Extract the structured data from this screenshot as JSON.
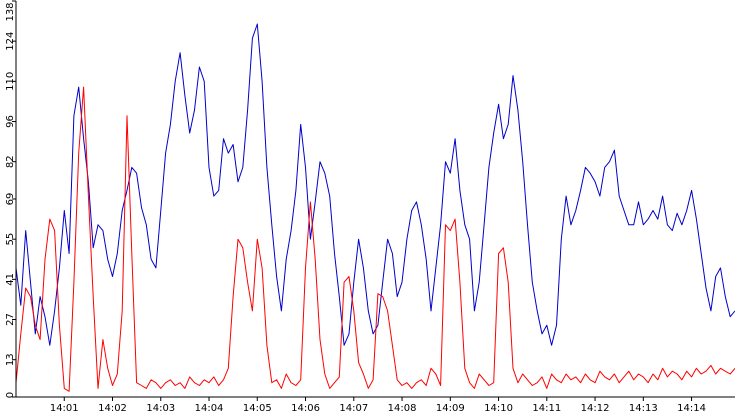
{
  "chart_data": {
    "type": "line",
    "title": "",
    "xlabel": "",
    "ylabel": "",
    "x_unit": "minutes",
    "xlim": [
      0,
      14.9
    ],
    "ylim": [
      0,
      138
    ],
    "grid": false,
    "legend": "none",
    "x_ticks": [
      {
        "value": 1,
        "label": "14:01"
      },
      {
        "value": 2,
        "label": "14:02"
      },
      {
        "value": 3,
        "label": "14:03"
      },
      {
        "value": 4,
        "label": "14:04"
      },
      {
        "value": 5,
        "label": "14:05"
      },
      {
        "value": 6,
        "label": "14:06"
      },
      {
        "value": 7,
        "label": "14:07"
      },
      {
        "value": 8,
        "label": "14:08"
      },
      {
        "value": 9,
        "label": "14:09"
      },
      {
        "value": 10,
        "label": "14:10"
      },
      {
        "value": 11,
        "label": "14:11"
      },
      {
        "value": 12,
        "label": "14:12"
      },
      {
        "value": 13,
        "label": "14:13"
      },
      {
        "value": 14,
        "label": "14:14"
      }
    ],
    "y_ticks": [
      {
        "value": 0,
        "label": "0"
      },
      {
        "value": 13,
        "label": "13"
      },
      {
        "value": 27,
        "label": "27"
      },
      {
        "value": 41,
        "label": "41"
      },
      {
        "value": 55,
        "label": "55"
      },
      {
        "value": 69,
        "label": "69"
      },
      {
        "value": 82,
        "label": "82"
      },
      {
        "value": 96,
        "label": "96"
      },
      {
        "value": 110,
        "label": "110"
      },
      {
        "value": 124,
        "label": "124"
      },
      {
        "value": 138,
        "label": "138"
      }
    ],
    "series": [
      {
        "color": "#0000cc",
        "x": [
          0.0,
          0.1,
          0.2,
          0.3,
          0.4,
          0.5,
          0.6,
          0.7,
          0.8,
          0.9,
          1.0,
          1.1,
          1.2,
          1.3,
          1.4,
          1.5,
          1.6,
          1.7,
          1.8,
          1.9,
          2.0,
          2.1,
          2.2,
          2.3,
          2.4,
          2.5,
          2.6,
          2.7,
          2.8,
          2.9,
          3.0,
          3.1,
          3.2,
          3.3,
          3.4,
          3.5,
          3.6,
          3.7,
          3.8,
          3.9,
          4.0,
          4.1,
          4.2,
          4.3,
          4.4,
          4.5,
          4.6,
          4.7,
          4.8,
          4.9,
          5.0,
          5.1,
          5.2,
          5.3,
          5.4,
          5.5,
          5.6,
          5.7,
          5.8,
          5.9,
          6.0,
          6.1,
          6.2,
          6.3,
          6.4,
          6.5,
          6.6,
          6.7,
          6.8,
          6.9,
          7.0,
          7.1,
          7.2,
          7.3,
          7.4,
          7.5,
          7.6,
          7.7,
          7.8,
          7.9,
          8.0,
          8.1,
          8.2,
          8.3,
          8.4,
          8.5,
          8.6,
          8.7,
          8.8,
          8.9,
          9.0,
          9.1,
          9.2,
          9.3,
          9.4,
          9.5,
          9.6,
          9.7,
          9.8,
          9.9,
          10.0,
          10.1,
          10.2,
          10.3,
          10.4,
          10.5,
          10.6,
          10.7,
          10.8,
          10.9,
          11.0,
          11.1,
          11.2,
          11.3,
          11.4,
          11.5,
          11.6,
          11.7,
          11.8,
          11.9,
          12.0,
          12.1,
          12.2,
          12.3,
          12.4,
          12.5,
          12.6,
          12.7,
          12.8,
          12.9,
          13.0,
          13.1,
          13.2,
          13.3,
          13.4,
          13.5,
          13.6,
          13.7,
          13.8,
          13.9,
          14.0,
          14.1,
          14.2,
          14.3,
          14.4,
          14.5,
          14.6,
          14.7,
          14.8,
          14.9
        ],
        "values": [
          45,
          32,
          58,
          40,
          22,
          35,
          28,
          18,
          30,
          45,
          65,
          50,
          98,
          108,
          90,
          75,
          52,
          60,
          58,
          48,
          42,
          50,
          65,
          72,
          80,
          78,
          66,
          60,
          48,
          45,
          65,
          85,
          95,
          110,
          120,
          105,
          92,
          100,
          115,
          110,
          80,
          70,
          72,
          90,
          85,
          88,
          75,
          80,
          100,
          125,
          130,
          110,
          80,
          60,
          42,
          30,
          48,
          58,
          72,
          95,
          80,
          55,
          68,
          82,
          78,
          70,
          50,
          35,
          18,
          22,
          40,
          55,
          45,
          30,
          22,
          25,
          40,
          55,
          50,
          35,
          40,
          55,
          65,
          68,
          60,
          48,
          30,
          45,
          60,
          82,
          78,
          90,
          72,
          60,
          55,
          30,
          40,
          60,
          80,
          92,
          102,
          90,
          95,
          112,
          100,
          82,
          60,
          40,
          30,
          22,
          25,
          18,
          25,
          55,
          70,
          60,
          65,
          72,
          80,
          78,
          75,
          70,
          80,
          82,
          86,
          70,
          65,
          60,
          60,
          68,
          60,
          62,
          65,
          62,
          70,
          60,
          58,
          64,
          60,
          65,
          72,
          62,
          50,
          38,
          30,
          42,
          45,
          35,
          28,
          30
        ]
      },
      {
        "color": "#ff0000",
        "x": [
          0.0,
          0.1,
          0.2,
          0.3,
          0.4,
          0.5,
          0.6,
          0.7,
          0.8,
          0.9,
          1.0,
          1.1,
          1.2,
          1.3,
          1.4,
          1.5,
          1.6,
          1.7,
          1.8,
          1.9,
          2.0,
          2.1,
          2.2,
          2.3,
          2.4,
          2.5,
          2.6,
          2.7,
          2.8,
          2.9,
          3.0,
          3.1,
          3.2,
          3.3,
          3.4,
          3.5,
          3.6,
          3.7,
          3.8,
          3.9,
          4.0,
          4.1,
          4.2,
          4.3,
          4.4,
          4.5,
          4.6,
          4.7,
          4.8,
          4.9,
          5.0,
          5.1,
          5.2,
          5.3,
          5.4,
          5.5,
          5.6,
          5.7,
          5.8,
          5.9,
          6.0,
          6.1,
          6.2,
          6.3,
          6.4,
          6.5,
          6.6,
          6.7,
          6.8,
          6.9,
          7.0,
          7.1,
          7.2,
          7.3,
          7.4,
          7.5,
          7.6,
          7.7,
          7.8,
          7.9,
          8.0,
          8.1,
          8.2,
          8.3,
          8.4,
          8.5,
          8.6,
          8.7,
          8.8,
          8.9,
          9.0,
          9.1,
          9.2,
          9.3,
          9.4,
          9.5,
          9.6,
          9.7,
          9.8,
          9.9,
          10.0,
          10.1,
          10.2,
          10.3,
          10.4,
          10.5,
          10.6,
          10.7,
          10.8,
          10.9,
          11.0,
          11.1,
          11.2,
          11.3,
          11.4,
          11.5,
          11.6,
          11.7,
          11.8,
          11.9,
          12.0,
          12.1,
          12.2,
          12.3,
          12.4,
          12.5,
          12.6,
          12.7,
          12.8,
          12.9,
          13.0,
          13.1,
          13.2,
          13.3,
          13.4,
          13.5,
          13.6,
          13.7,
          13.8,
          13.9,
          14.0,
          14.1,
          14.2,
          14.3,
          14.4,
          14.5,
          14.6,
          14.7,
          14.8,
          14.9
        ],
        "values": [
          5,
          22,
          38,
          35,
          25,
          20,
          48,
          62,
          58,
          25,
          3,
          2,
          40,
          85,
          108,
          70,
          35,
          3,
          20,
          10,
          4,
          8,
          30,
          98,
          50,
          5,
          4,
          3,
          6,
          5,
          3,
          5,
          6,
          4,
          5,
          3,
          7,
          5,
          4,
          6,
          5,
          7,
          4,
          6,
          10,
          35,
          55,
          52,
          40,
          30,
          55,
          45,
          18,
          5,
          6,
          3,
          8,
          5,
          4,
          6,
          45,
          68,
          48,
          20,
          8,
          3,
          5,
          7,
          40,
          42,
          30,
          12,
          8,
          3,
          6,
          36,
          35,
          30,
          18,
          6,
          4,
          5,
          3,
          5,
          6,
          4,
          10,
          8,
          4,
          60,
          58,
          62,
          40,
          10,
          5,
          3,
          8,
          6,
          4,
          5,
          50,
          52,
          40,
          10,
          5,
          8,
          6,
          4,
          5,
          7,
          3,
          8,
          6,
          5,
          8,
          6,
          7,
          5,
          8,
          6,
          5,
          9,
          7,
          6,
          8,
          5,
          7,
          9,
          6,
          8,
          7,
          5,
          8,
          6,
          10,
          7,
          9,
          8,
          6,
          9,
          7,
          10,
          8,
          9,
          11,
          8,
          10,
          9,
          8,
          10
        ]
      }
    ]
  }
}
